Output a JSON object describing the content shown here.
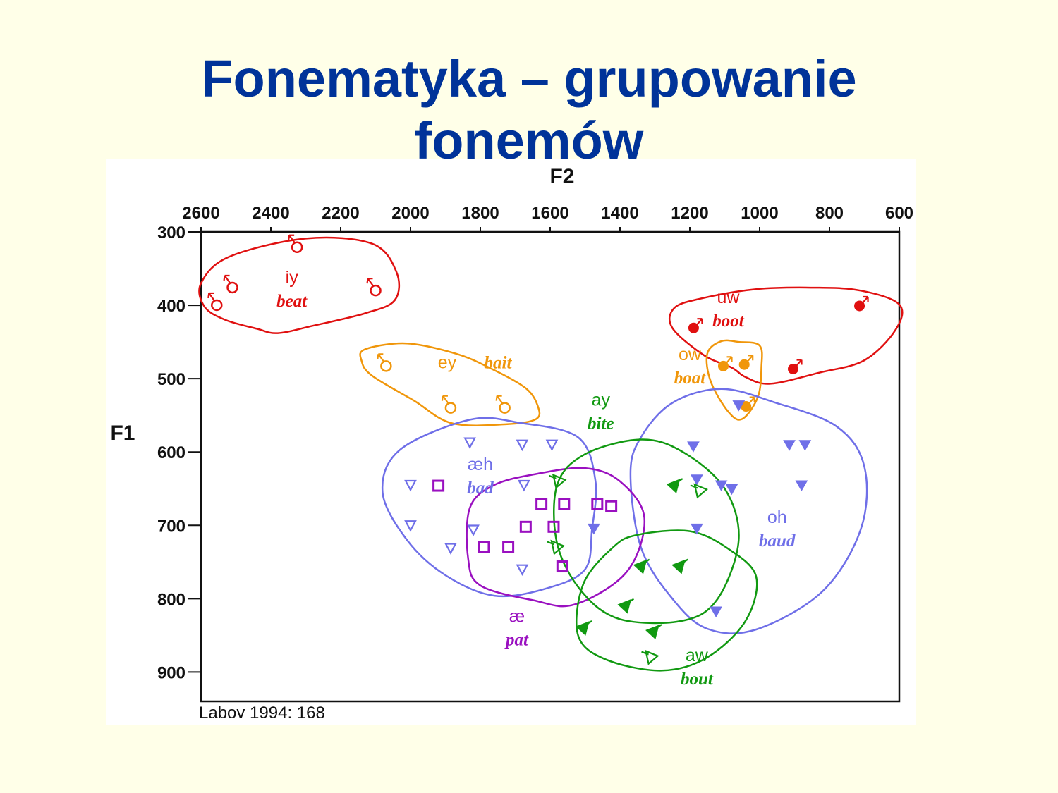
{
  "slide": {
    "title_line1": "Fonematyka – grupowanie",
    "title_line2": "fonemów"
  },
  "colors": {
    "title": "#003399",
    "iy": "#e01010",
    "uw": "#e01010",
    "ey": "#f0960a",
    "ow": "#f0960a",
    "aeh": "#6f6fe8",
    "oh": "#6f6fe8",
    "ae": "#9a10c0",
    "ay": "#119911",
    "aw": "#119911"
  },
  "chart_data": {
    "type": "scatter",
    "xlabel": "F2",
    "ylabel": "F1",
    "xlim": [
      2600,
      600
    ],
    "ylim": [
      300,
      940
    ],
    "x_ticks": [
      2600,
      2400,
      2200,
      2000,
      1800,
      1600,
      1400,
      1200,
      1000,
      800,
      600
    ],
    "y_ticks": [
      300,
      400,
      500,
      600,
      700,
      800,
      900
    ],
    "x_axis_position": "top",
    "y_axis_reversed": true,
    "grid": false,
    "source": "Labov 1994: 168",
    "series": [
      {
        "id": "iy",
        "label": "iy",
        "word": "beat",
        "marker": "female-open",
        "label_pos": [
          2340,
          370
        ],
        "points": [
          [
            2325,
            318
          ],
          [
            2510,
            373
          ],
          [
            2555,
            397
          ],
          [
            2100,
            377
          ]
        ]
      },
      {
        "id": "uw",
        "label": "uw",
        "word": "boot",
        "marker": "male-filled",
        "label_pos": [
          1090,
          397
        ],
        "points": [
          [
            1185,
            428
          ],
          [
            900,
            484
          ],
          [
            710,
            398
          ]
        ]
      },
      {
        "id": "ey",
        "label": "ey",
        "word": "bait",
        "marker": "female-open-orange",
        "label_pos": [
          1895,
          486
        ],
        "points": [
          [
            2070,
            480
          ],
          [
            1885,
            537
          ],
          [
            1730,
            537
          ]
        ]
      },
      {
        "id": "ow",
        "label": "ow",
        "word": "boat",
        "marker": "male-filled-orange",
        "label_pos": [
          1200,
          475
        ],
        "points": [
          [
            1100,
            480
          ],
          [
            1040,
            478
          ],
          [
            1035,
            535
          ]
        ]
      },
      {
        "id": "aeh",
        "label": "æh",
        "word": "bad",
        "marker": "triangle-down-open",
        "label_pos": [
          1800,
          625
        ],
        "points": [
          [
            1830,
            587
          ],
          [
            1680,
            590
          ],
          [
            1595,
            590
          ],
          [
            2000,
            645
          ],
          [
            1675,
            645
          ],
          [
            2000,
            700
          ],
          [
            1820,
            706
          ],
          [
            1885,
            731
          ],
          [
            1680,
            760
          ]
        ]
      },
      {
        "id": "oh",
        "label": "oh",
        "word": "baud",
        "marker": "triangle-down-filled",
        "label_pos": [
          950,
          697
        ],
        "points": [
          [
            1060,
            536
          ],
          [
            1190,
            592
          ],
          [
            915,
            590
          ],
          [
            870,
            590
          ],
          [
            1180,
            637
          ],
          [
            1110,
            645
          ],
          [
            1080,
            650
          ],
          [
            880,
            645
          ],
          [
            1180,
            704
          ],
          [
            1475,
            704
          ],
          [
            1125,
            817
          ]
        ]
      },
      {
        "id": "ae",
        "label": "æ",
        "word": "pat",
        "marker": "square-open",
        "label_pos": [
          1695,
          832
        ],
        "points": [
          [
            1920,
            646
          ],
          [
            1625,
            671
          ],
          [
            1560,
            671
          ],
          [
            1465,
            671
          ],
          [
            1425,
            674
          ],
          [
            1670,
            702
          ],
          [
            1590,
            702
          ],
          [
            1790,
            730
          ],
          [
            1720,
            730
          ],
          [
            1565,
            756
          ]
        ]
      },
      {
        "id": "ay",
        "label": "ay",
        "word": "bite",
        "marker": "bird-open",
        "label_pos": [
          1455,
          537
        ],
        "points": [
          [
            1575,
            640
          ],
          [
            1580,
            730
          ],
          [
            1170,
            653
          ],
          [
            1310,
            880
          ]
        ]
      },
      {
        "id": "aw",
        "label": "aw",
        "word": "bout",
        "marker": "bird-filled",
        "label_pos": [
          1180,
          885
        ],
        "points": [
          [
            1245,
            646
          ],
          [
            1340,
            756
          ],
          [
            1230,
            756
          ],
          [
            1385,
            810
          ],
          [
            1305,
            845
          ],
          [
            1505,
            840
          ]
        ]
      }
    ]
  }
}
